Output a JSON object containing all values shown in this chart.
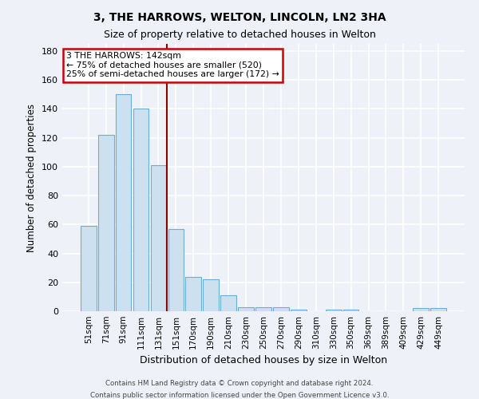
{
  "title1": "3, THE HARROWS, WELTON, LINCOLN, LN2 3HA",
  "title2": "Size of property relative to detached houses in Welton",
  "xlabel": "Distribution of detached houses by size in Welton",
  "ylabel": "Number of detached properties",
  "footer1": "Contains HM Land Registry data © Crown copyright and database right 2024.",
  "footer2": "Contains public sector information licensed under the Open Government Licence v3.0.",
  "bin_labels": [
    "51sqm",
    "71sqm",
    "91sqm",
    "111sqm",
    "131sqm",
    "151sqm",
    "170sqm",
    "190sqm",
    "210sqm",
    "230sqm",
    "250sqm",
    "270sqm",
    "290sqm",
    "310sqm",
    "330sqm",
    "350sqm",
    "369sqm",
    "389sqm",
    "409sqm",
    "429sqm",
    "449sqm"
  ],
  "bar_values": [
    59,
    122,
    150,
    140,
    101,
    57,
    24,
    22,
    11,
    3,
    3,
    3,
    1,
    0,
    1,
    1,
    0,
    0,
    0,
    2,
    2
  ],
  "bar_color": "#cce0f0",
  "bar_edge_color": "#6aaed6",
  "ylim": [
    0,
    185
  ],
  "yticks": [
    0,
    20,
    40,
    60,
    80,
    100,
    120,
    140,
    160,
    180
  ],
  "vline_x_idx": 4.5,
  "vline_color": "#8b0000",
  "ann_line1": "3 THE HARROWS: 142sqm",
  "ann_line2": "← 75% of detached houses are smaller (520)",
  "ann_line3": "25% of semi-detached houses are larger (172) →",
  "ann_box_color": "#cc0000",
  "background_color": "#eef2f8",
  "grid_color": "#d0d8e8",
  "footer1_text": "Contains HM Land Registry data © Crown copyright and database right 2024.",
  "footer2_text": "Contains public sector information licensed under the Open Government Licence v3.0."
}
